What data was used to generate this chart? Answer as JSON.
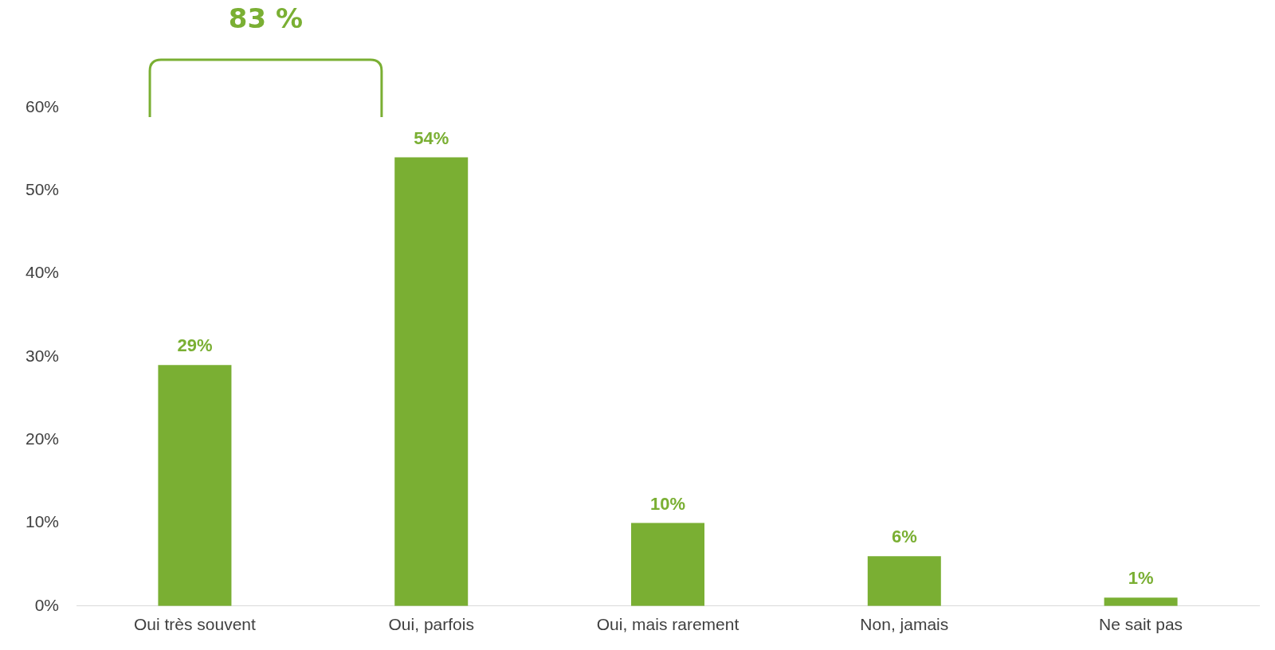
{
  "chart_data": {
    "type": "bar",
    "categories": [
      "Oui très souvent",
      "Oui, parfois",
      "Oui, mais rarement",
      "Non, jamais",
      "Ne sait pas"
    ],
    "values": [
      29,
      54,
      10,
      6,
      1
    ],
    "value_labels": [
      "29%",
      "54%",
      "10%",
      "6%",
      "1%"
    ],
    "color": "#7aaf33",
    "ylim": [
      0,
      60
    ],
    "yticks": [
      {
        "value": 0,
        "label": "0%"
      },
      {
        "value": 10,
        "label": "10%"
      },
      {
        "value": 20,
        "label": "20%"
      },
      {
        "value": 30,
        "label": "30%"
      },
      {
        "value": 40,
        "label": "40%"
      },
      {
        "value": 50,
        "label": "50%"
      },
      {
        "value": 60,
        "label": "60%"
      }
    ],
    "grid": false,
    "legend": false,
    "annotations": [
      "83 %"
    ]
  }
}
